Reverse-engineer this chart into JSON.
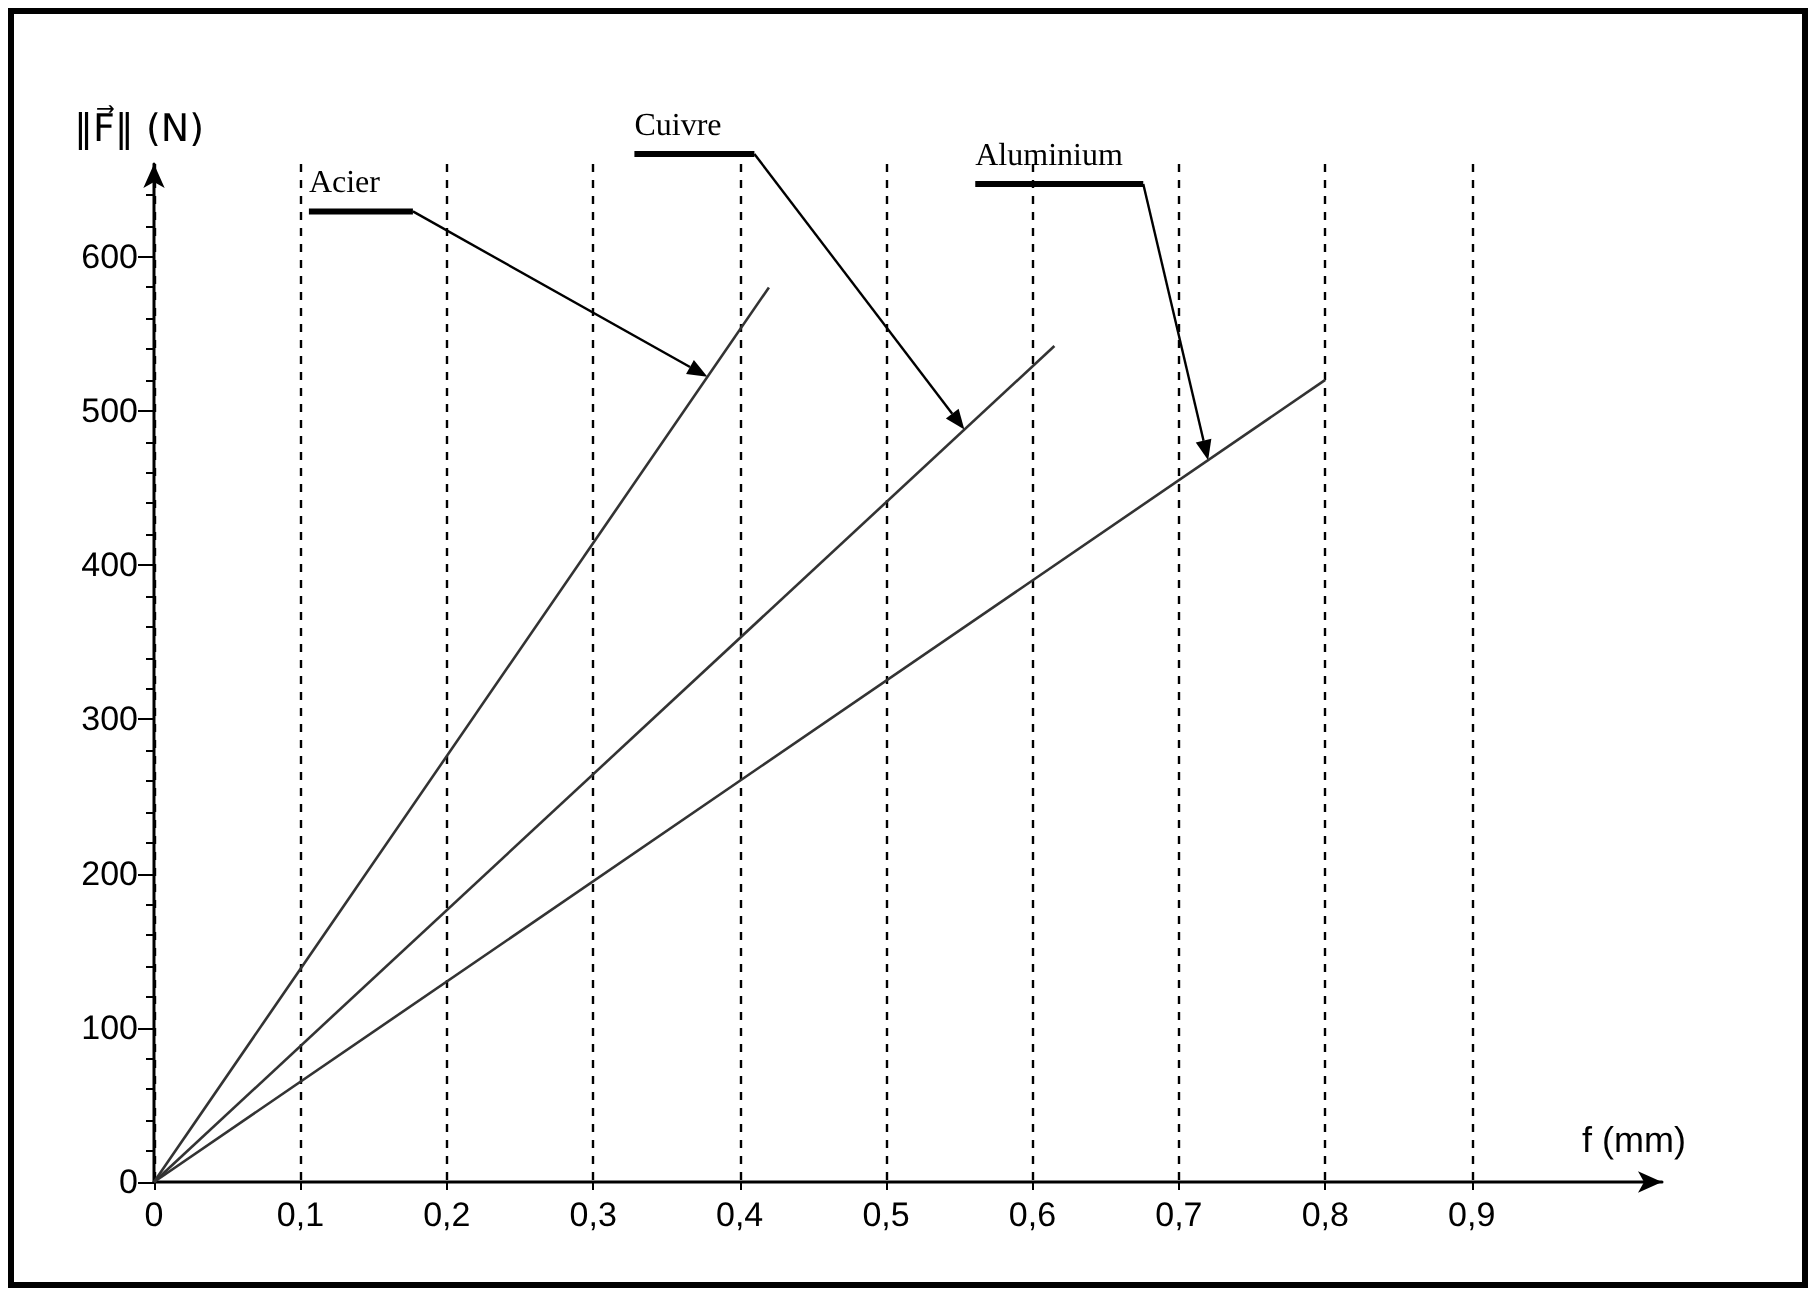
{
  "chart_data": {
    "type": "line",
    "xlabel": "f (mm)",
    "ylabel": "‖F⃗‖ (N)",
    "series": [
      {
        "name": "Acier",
        "color": "#333333",
        "x": [
          0,
          0.42
        ],
        "values": [
          0,
          580
        ]
      },
      {
        "name": "Cuivre",
        "color": "#333333",
        "x": [
          0,
          0.615
        ],
        "values": [
          0,
          542
        ]
      },
      {
        "name": "Aluminium",
        "color": "#333333",
        "x": [
          0,
          0.8
        ],
        "values": [
          0,
          520
        ]
      }
    ],
    "xlim": [
      0,
      1.03
    ],
    "ylim": [
      0,
      660
    ],
    "xticks": [
      {
        "value": 0,
        "label": "0"
      },
      {
        "value": 0.1,
        "label": "0,1"
      },
      {
        "value": 0.2,
        "label": "0,2"
      },
      {
        "value": 0.3,
        "label": "0,3"
      },
      {
        "value": 0.4,
        "label": "0,4"
      },
      {
        "value": 0.5,
        "label": "0,5"
      },
      {
        "value": 0.6,
        "label": "0,6"
      },
      {
        "value": 0.7,
        "label": "0,7"
      },
      {
        "value": 0.8,
        "label": "0,8"
      },
      {
        "value": 0.9,
        "label": "0,9"
      }
    ],
    "yticks": [
      0,
      100,
      200,
      300,
      400,
      500,
      600
    ],
    "grid": "x",
    "marker": "none",
    "line_style": "solid",
    "legend": false
  }
}
